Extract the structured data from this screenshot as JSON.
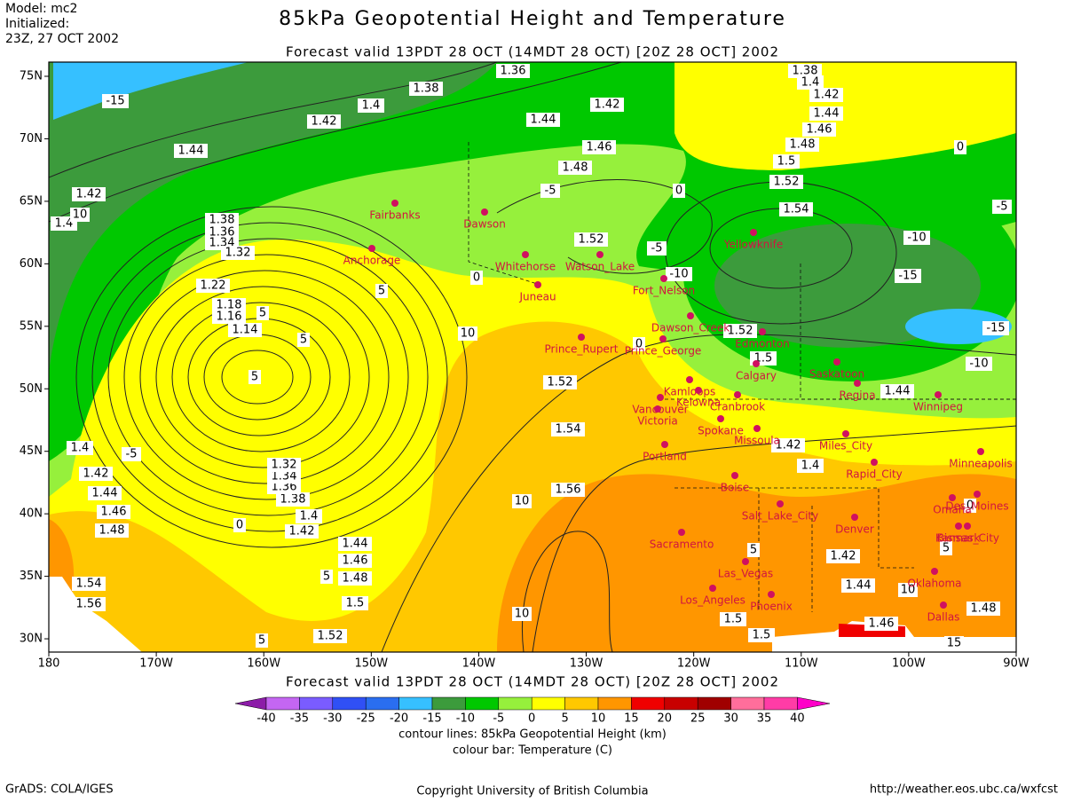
{
  "header": {
    "model": "Model: mc2",
    "initialized": "Initialized:",
    "run": "23Z, 27 OCT 2002"
  },
  "title": "85kPa Geopotential Height and Temperature",
  "subtitle": "Forecast valid 13PDT 28 OCT (14MDT 28 OCT) [20Z 28 OCT] 2002",
  "map": {
    "lat_labels": [
      "75N",
      "70N",
      "65N",
      "60N",
      "55N",
      "50N",
      "45N",
      "40N",
      "35N",
      "30N"
    ],
    "lon_labels": [
      "180",
      "170W",
      "160W",
      "150W",
      "140W",
      "130W",
      "120W",
      "110W",
      "100W",
      "90W"
    ],
    "cities": [
      "Fairbanks",
      "Dawson",
      "Anchorage",
      "Whitehorse",
      "Watson_Lake",
      "Juneau",
      "Yellowknife",
      "Fort_Nelson",
      "Dawson_Creek",
      "Edmonton",
      "Prince_George",
      "Prince_Rupert",
      "Saskatoon",
      "Calgary",
      "Kamloops",
      "Regina",
      "Kelowna",
      "Cranbrook",
      "Vancouver",
      "Winnipeg",
      "Victoria",
      "Spokane",
      "Missoula",
      "Miles_City",
      "Portland",
      "Minneapolis",
      "Boise",
      "Rapid_City",
      "Salt_Lake_City",
      "Des_Moines",
      "Omaha",
      "Kansas_City",
      "Denver",
      "Sacramento",
      "Bismark",
      "Las_Vegas",
      "Phoenix",
      "Los_Angeles",
      "Oklahoma",
      "Dallas"
    ],
    "contour_labels": [
      "1.36",
      "1.38",
      "1.4",
      "1.42",
      "1.44",
      "1.42",
      "1.4",
      "1.38",
      "1.36",
      "1.34",
      "1.32",
      "1.22",
      "1.18",
      "1.16",
      "1.14",
      "1.42",
      "1.44",
      "1.46",
      "1.48",
      "1.5",
      "1.52",
      "1.54",
      "1.52",
      "1.38",
      "1.4",
      "1.42",
      "1.44",
      "1.46",
      "1.48",
      "1.52",
      "1.5",
      "1.52",
      "1.54",
      "1.56",
      "1.44",
      "1.42",
      "1.4",
      "1.4",
      "1.42",
      "1.44",
      "1.46",
      "1.48",
      "1.54",
      "1.56",
      "1.52",
      "1.5",
      "1.48",
      "1.46",
      "1.44",
      "1.42",
      "1.4",
      "1.38",
      "1.36",
      "1.34",
      "1.32",
      "1.42",
      "1.44",
      "1.46",
      "1.48",
      "1.5",
      "1.5"
    ],
    "temperature_labels": [
      "-15",
      "-5",
      "-10",
      "-15",
      "-15",
      "-10",
      "-5",
      "-5",
      "-10",
      "0",
      "0",
      "0",
      "0",
      "5",
      "5",
      "5",
      "5",
      "10",
      "10",
      "10",
      "10",
      "5",
      "5",
      "5",
      "0",
      "-5",
      "10",
      "0",
      "5",
      "15"
    ]
  },
  "valid_repeat": "Forecast valid 13PDT 28 OCT (14MDT 28 OCT) [20Z 28 OCT] 2002",
  "colorbar": {
    "labels": [
      "-40",
      "-35",
      "-30",
      "-25",
      "-20",
      "-15",
      "-10",
      "-5",
      "0",
      "5",
      "10",
      "15",
      "20",
      "25",
      "30",
      "35",
      "40"
    ],
    "colors": [
      "#8c1ca8",
      "#c466f2",
      "#7a5cff",
      "#3050f5",
      "#2a6ef0",
      "#36c0ff",
      "#3c9b3c",
      "#00c800",
      "#96f03c",
      "#ffff00",
      "#ffc800",
      "#ff9600",
      "#f00000",
      "#c80000",
      "#a00000",
      "#ff6e9b",
      "#ff3ca6",
      "#ff00c8"
    ]
  },
  "captions": [
    "contour lines: 85kPa Geopotential Height (km)",
    "colour bar: Temperature (C)"
  ],
  "credits": {
    "left": "GrADS: COLA/IGES",
    "center": "Copyright University of British Columbia",
    "right": "http://weather.eos.ubc.ca/wxfcst"
  }
}
